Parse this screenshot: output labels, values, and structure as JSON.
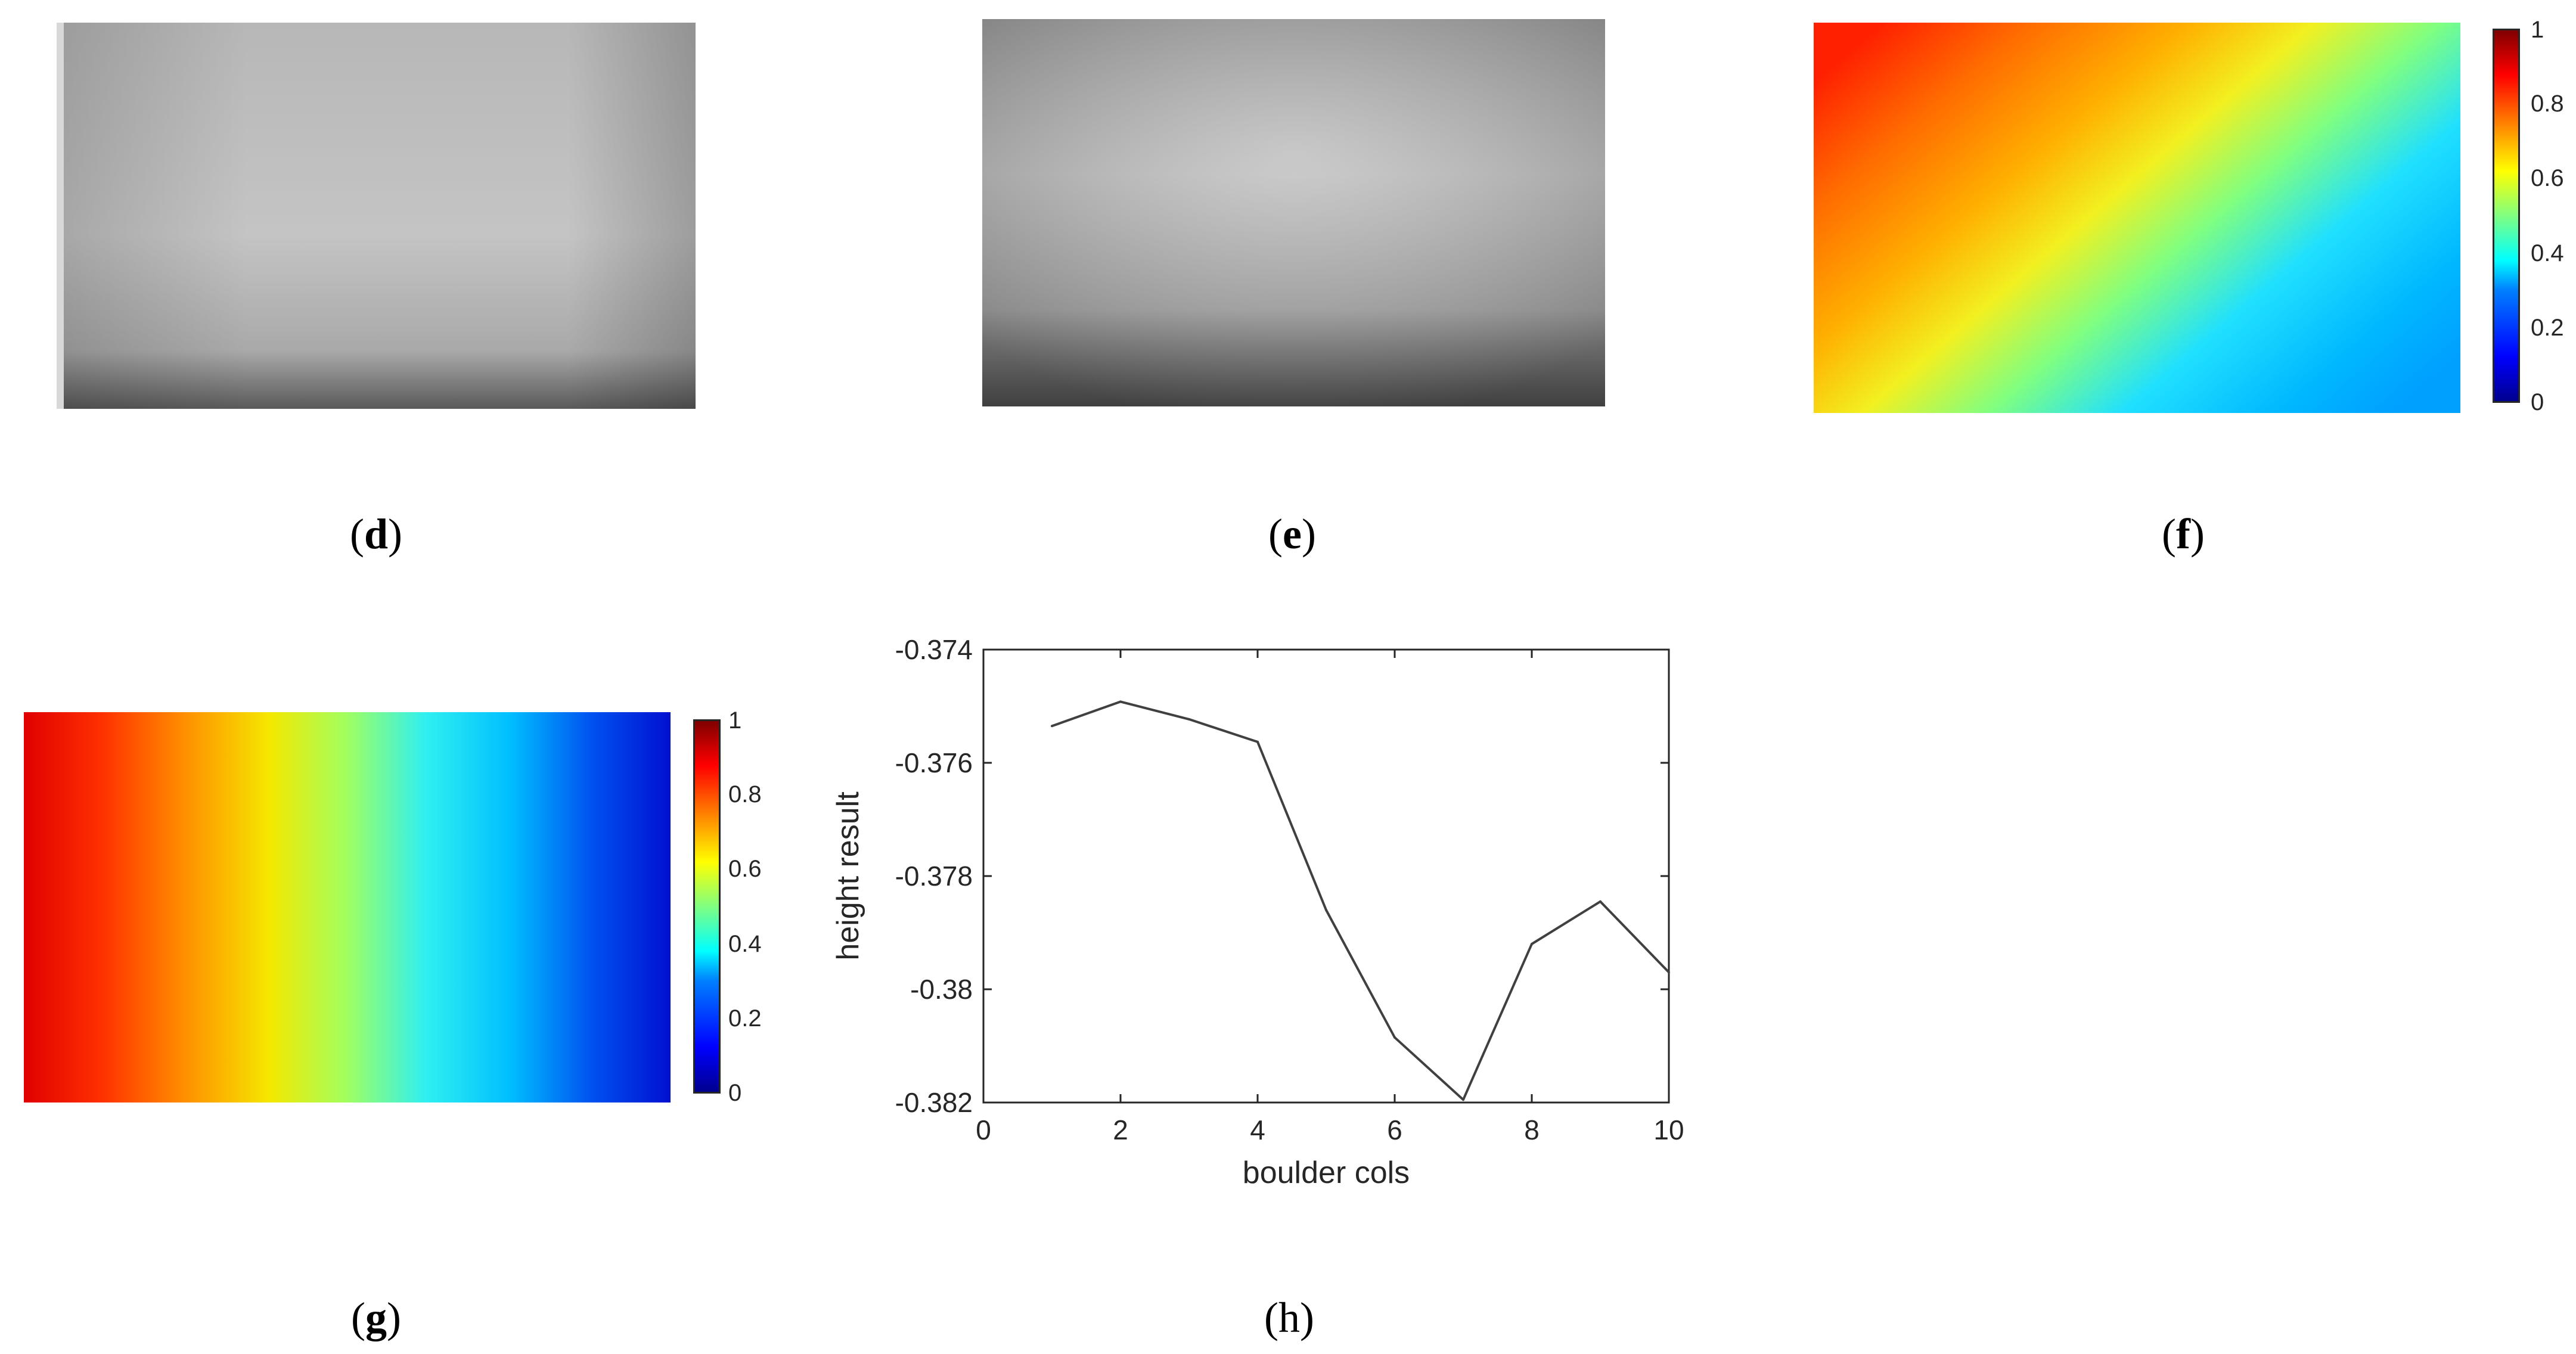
{
  "captions": {
    "d": "d",
    "e": "e",
    "f": "f",
    "g": "g",
    "h": "h"
  },
  "colorbar": {
    "ticks": [
      "0",
      "0.2",
      "0.4",
      "0.6",
      "0.8",
      "1"
    ]
  },
  "chart_data": {
    "type": "line",
    "title": "",
    "xlabel": "boulder cols",
    "ylabel": "height result",
    "xlim": [
      0,
      10
    ],
    "ylim": [
      -0.382,
      -0.374
    ],
    "xticks": [
      0,
      2,
      4,
      6,
      8,
      10
    ],
    "xtick_labels": [
      "0",
      "2",
      "4",
      "6",
      "8",
      "10"
    ],
    "yticks": [
      -0.382,
      -0.38,
      -0.378,
      -0.376,
      -0.374
    ],
    "ytick_labels": [
      "-0.382",
      "-0.38",
      "-0.378",
      "-0.376",
      "-0.374"
    ],
    "grid": false,
    "line_color": "#404040",
    "x": [
      1,
      2,
      3,
      4,
      5,
      6,
      7,
      8,
      9,
      10
    ],
    "y": [
      -0.37535,
      -0.37492,
      -0.37523,
      -0.37563,
      -0.3786,
      -0.38085,
      -0.38195,
      -0.3792,
      -0.37845,
      -0.3797
    ]
  }
}
